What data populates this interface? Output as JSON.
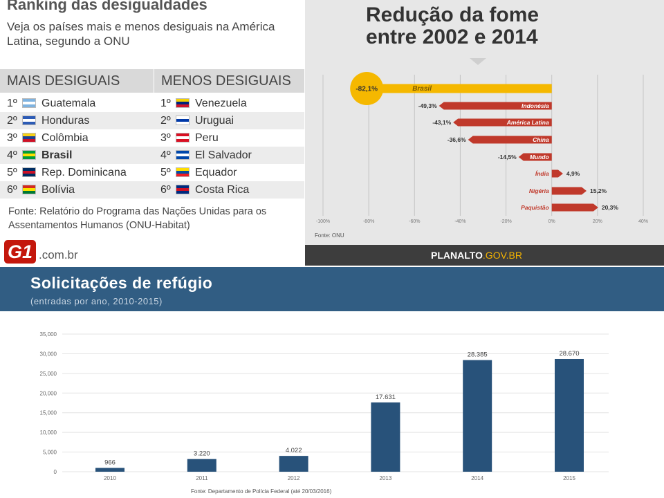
{
  "ranking": {
    "title": "Ranking das desigualdades",
    "subtitle": "Veja os países mais e menos desiguais na América Latina, segundo a ONU",
    "left_header": "MAIS DESIGUAIS",
    "right_header": "MENOS DESIGUAIS",
    "left": [
      {
        "pos": "1º",
        "name": "Guatemala",
        "flag": [
          "#7fb3e0",
          "#ffffff",
          "#7fb3e0"
        ]
      },
      {
        "pos": "2º",
        "name": "Honduras",
        "flag": [
          "#2c5bb5",
          "#ffffff",
          "#2c5bb5"
        ]
      },
      {
        "pos": "3º",
        "name": "Colômbia",
        "flag": [
          "#f7d117",
          "#1c3f94",
          "#ce1126"
        ]
      },
      {
        "pos": "4º",
        "name": "Brasil",
        "flag": [
          "#009c3b",
          "#ffdf00",
          "#009c3b"
        ]
      },
      {
        "pos": "5º",
        "name": "Rep. Dominicana",
        "flag": [
          "#002d62",
          "#ce1126",
          "#002d62"
        ]
      },
      {
        "pos": "6º",
        "name": "Bolívia",
        "flag": [
          "#d52b1e",
          "#f9e300",
          "#007934"
        ]
      }
    ],
    "right": [
      {
        "pos": "1º",
        "name": "Venezuela",
        "flag": [
          "#f4d103",
          "#00247d",
          "#cf142b"
        ]
      },
      {
        "pos": "2º",
        "name": "Uruguai",
        "flag": [
          "#ffffff",
          "#0038a8",
          "#ffffff"
        ]
      },
      {
        "pos": "3º",
        "name": "Peru",
        "flag": [
          "#d91023",
          "#ffffff",
          "#d91023"
        ]
      },
      {
        "pos": "4º",
        "name": "El Salvador",
        "flag": [
          "#0047ab",
          "#ffffff",
          "#0047ab"
        ]
      },
      {
        "pos": "5º",
        "name": "Equador",
        "flag": [
          "#ffdd00",
          "#034ea2",
          "#ed1c24"
        ]
      },
      {
        "pos": "6º",
        "name": "Costa Rica",
        "flag": [
          "#002b7f",
          "#ce1126",
          "#002b7f"
        ]
      }
    ],
    "source": "Fonte: Relatório do Programa das Nações Unidas para os Assentamentos Humanos (ONU-Habitat)",
    "logo_mark": "G1",
    "logo_text": ".com.br"
  },
  "fome": {
    "footer_main": "PLANALTO",
    "footer_accent": ".GOV.BR"
  },
  "refugio": {
    "subtitle": "(entradas por ano, 2010-2015)"
  },
  "chart_data": [
    {
      "type": "bar",
      "orientation": "horizontal",
      "title": "Redução da fome entre 2002 e 2014",
      "categories": [
        "Brasil",
        "Indonésia",
        "América Latina",
        "China",
        "Mundo",
        "Índia",
        "Nigéria",
        "Paquistão"
      ],
      "values": [
        -82.1,
        -49.3,
        -43.1,
        -36.6,
        -14.5,
        4.9,
        15.2,
        20.3
      ],
      "value_labels": [
        "-82,1%",
        "-49,3%",
        "-43,1%",
        "-36,6%",
        "-14,5%",
        "4,9%",
        "15,2%",
        "20,3%"
      ],
      "xlim": [
        -100,
        40
      ],
      "x_ticks": [
        "-100%",
        "-80%",
        "-60%",
        "-40%",
        "-20%",
        "0%",
        "20%",
        "40%"
      ],
      "x_tick_values": [
        -100,
        -80,
        -60,
        -40,
        -20,
        0,
        20,
        40
      ],
      "source": "Fonte: ONU",
      "colors": {
        "highlight": "#f5b800",
        "bar": "#c0392b",
        "grid": "#c4c4c4"
      },
      "grid": true
    },
    {
      "type": "bar",
      "title": "Solicitações de refúgio",
      "categories": [
        "2010",
        "2011",
        "2012",
        "2013",
        "2014",
        "2015"
      ],
      "values": [
        966,
        3220,
        4022,
        17631,
        28385,
        28670
      ],
      "value_labels": [
        "966",
        "3.220",
        "4.022",
        "17.631",
        "28.385",
        "28.670"
      ],
      "ylim": [
        0,
        35000
      ],
      "y_ticks": [
        "0",
        "5,000",
        "10,000",
        "15,000",
        "20,000",
        "25,000",
        "30,000",
        "35,000"
      ],
      "y_tick_values": [
        0,
        5000,
        10000,
        15000,
        20000,
        25000,
        30000,
        35000
      ],
      "source": "Fonte: Departamento de Polícia Federal (até 20/03/2016)",
      "colors": {
        "bar": "#28527a",
        "grid": "#e3e3e3",
        "header": "#315d83"
      },
      "grid": true
    }
  ]
}
